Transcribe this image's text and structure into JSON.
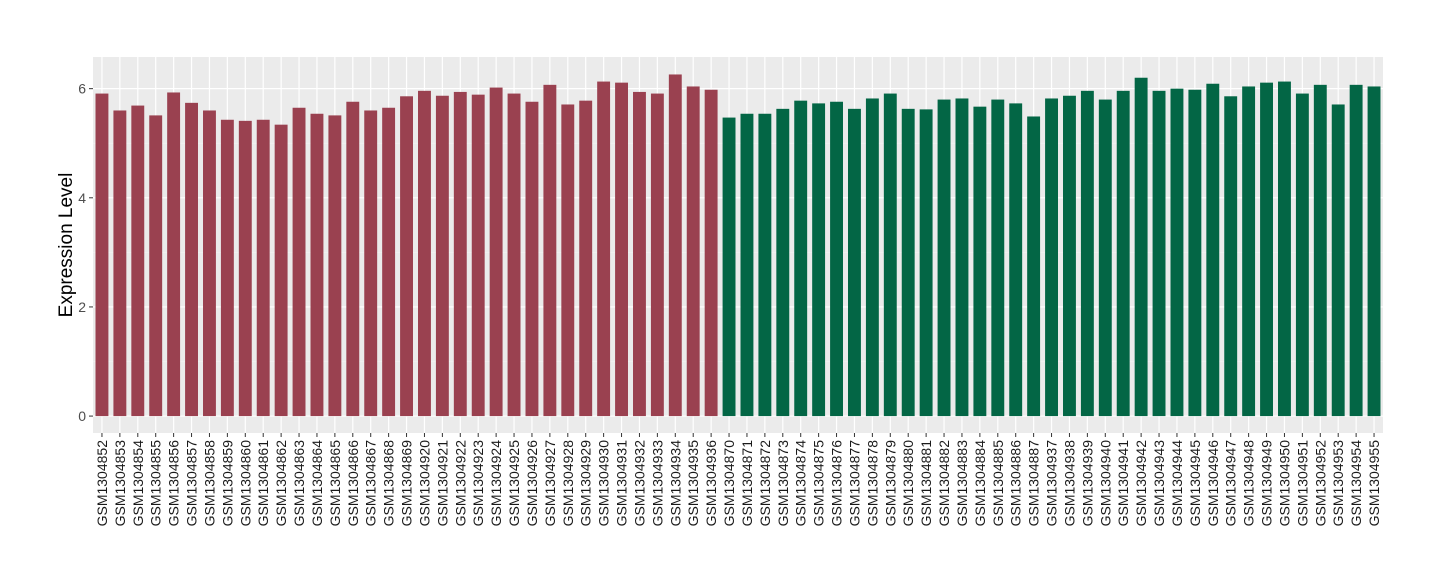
{
  "chart_data": {
    "type": "bar",
    "title": "",
    "xlabel": "",
    "ylabel": "Expression Level",
    "ylim": [
      -0.31,
      6.58
    ],
    "yticks": [
      0,
      2,
      4,
      6
    ],
    "grid": true,
    "legend": "none",
    "colors": {
      "group1": "#9a4150",
      "group2": "#036645",
      "panel": "#ebebeb",
      "grid": "#ffffff"
    },
    "series": [
      {
        "color": "#9a4150",
        "categories": [
          "GSM1304852",
          "GSM1304853",
          "GSM1304854",
          "GSM1304855",
          "GSM1304856",
          "GSM1304857",
          "GSM1304858",
          "GSM1304859",
          "GSM1304860",
          "GSM1304861",
          "GSM1304862",
          "GSM1304863",
          "GSM1304864",
          "GSM1304865",
          "GSM1304866",
          "GSM1304867",
          "GSM1304868",
          "GSM1304869",
          "GSM1304920",
          "GSM1304921",
          "GSM1304922",
          "GSM1304923",
          "GSM1304924",
          "GSM1304925",
          "GSM1304926",
          "GSM1304927",
          "GSM1304928",
          "GSM1304929",
          "GSM1304930",
          "GSM1304931",
          "GSM1304932",
          "GSM1304933",
          "GSM1304934",
          "GSM1304935",
          "GSM1304936"
        ],
        "values": [
          5.91,
          5.6,
          5.69,
          5.51,
          5.93,
          5.74,
          5.6,
          5.43,
          5.41,
          5.43,
          5.34,
          5.65,
          5.54,
          5.51,
          5.76,
          5.6,
          5.65,
          5.86,
          5.96,
          5.87,
          5.94,
          5.89,
          6.02,
          5.91,
          5.76,
          6.07,
          5.71,
          5.78,
          6.13,
          6.11,
          5.94,
          5.91,
          6.26,
          6.04,
          5.98
        ]
      },
      {
        "color": "#036645",
        "categories": [
          "GSM1304870",
          "GSM1304871",
          "GSM1304872",
          "GSM1304873",
          "GSM1304874",
          "GSM1304875",
          "GSM1304876",
          "GSM1304877",
          "GSM1304878",
          "GSM1304879",
          "GSM1304880",
          "GSM1304881",
          "GSM1304882",
          "GSM1304883",
          "GSM1304884",
          "GSM1304885",
          "GSM1304886",
          "GSM1304887",
          "GSM1304937",
          "GSM1304938",
          "GSM1304939",
          "GSM1304940",
          "GSM1304941",
          "GSM1304942",
          "GSM1304943",
          "GSM1304944",
          "GSM1304945",
          "GSM1304946",
          "GSM1304947",
          "GSM1304948",
          "GSM1304949",
          "GSM1304950",
          "GSM1304951",
          "GSM1304952",
          "GSM1304953",
          "GSM1304954",
          "GSM1304955"
        ],
        "values": [
          5.47,
          5.54,
          5.54,
          5.63,
          5.78,
          5.73,
          5.76,
          5.63,
          5.82,
          5.91,
          5.63,
          5.62,
          5.8,
          5.82,
          5.67,
          5.8,
          5.73,
          5.49,
          5.82,
          5.87,
          5.96,
          5.8,
          5.96,
          6.2,
          5.96,
          6.0,
          5.98,
          6.09,
          5.86,
          6.04,
          6.11,
          6.13,
          5.91,
          6.07,
          5.71,
          6.07,
          6.04
        ]
      }
    ]
  }
}
